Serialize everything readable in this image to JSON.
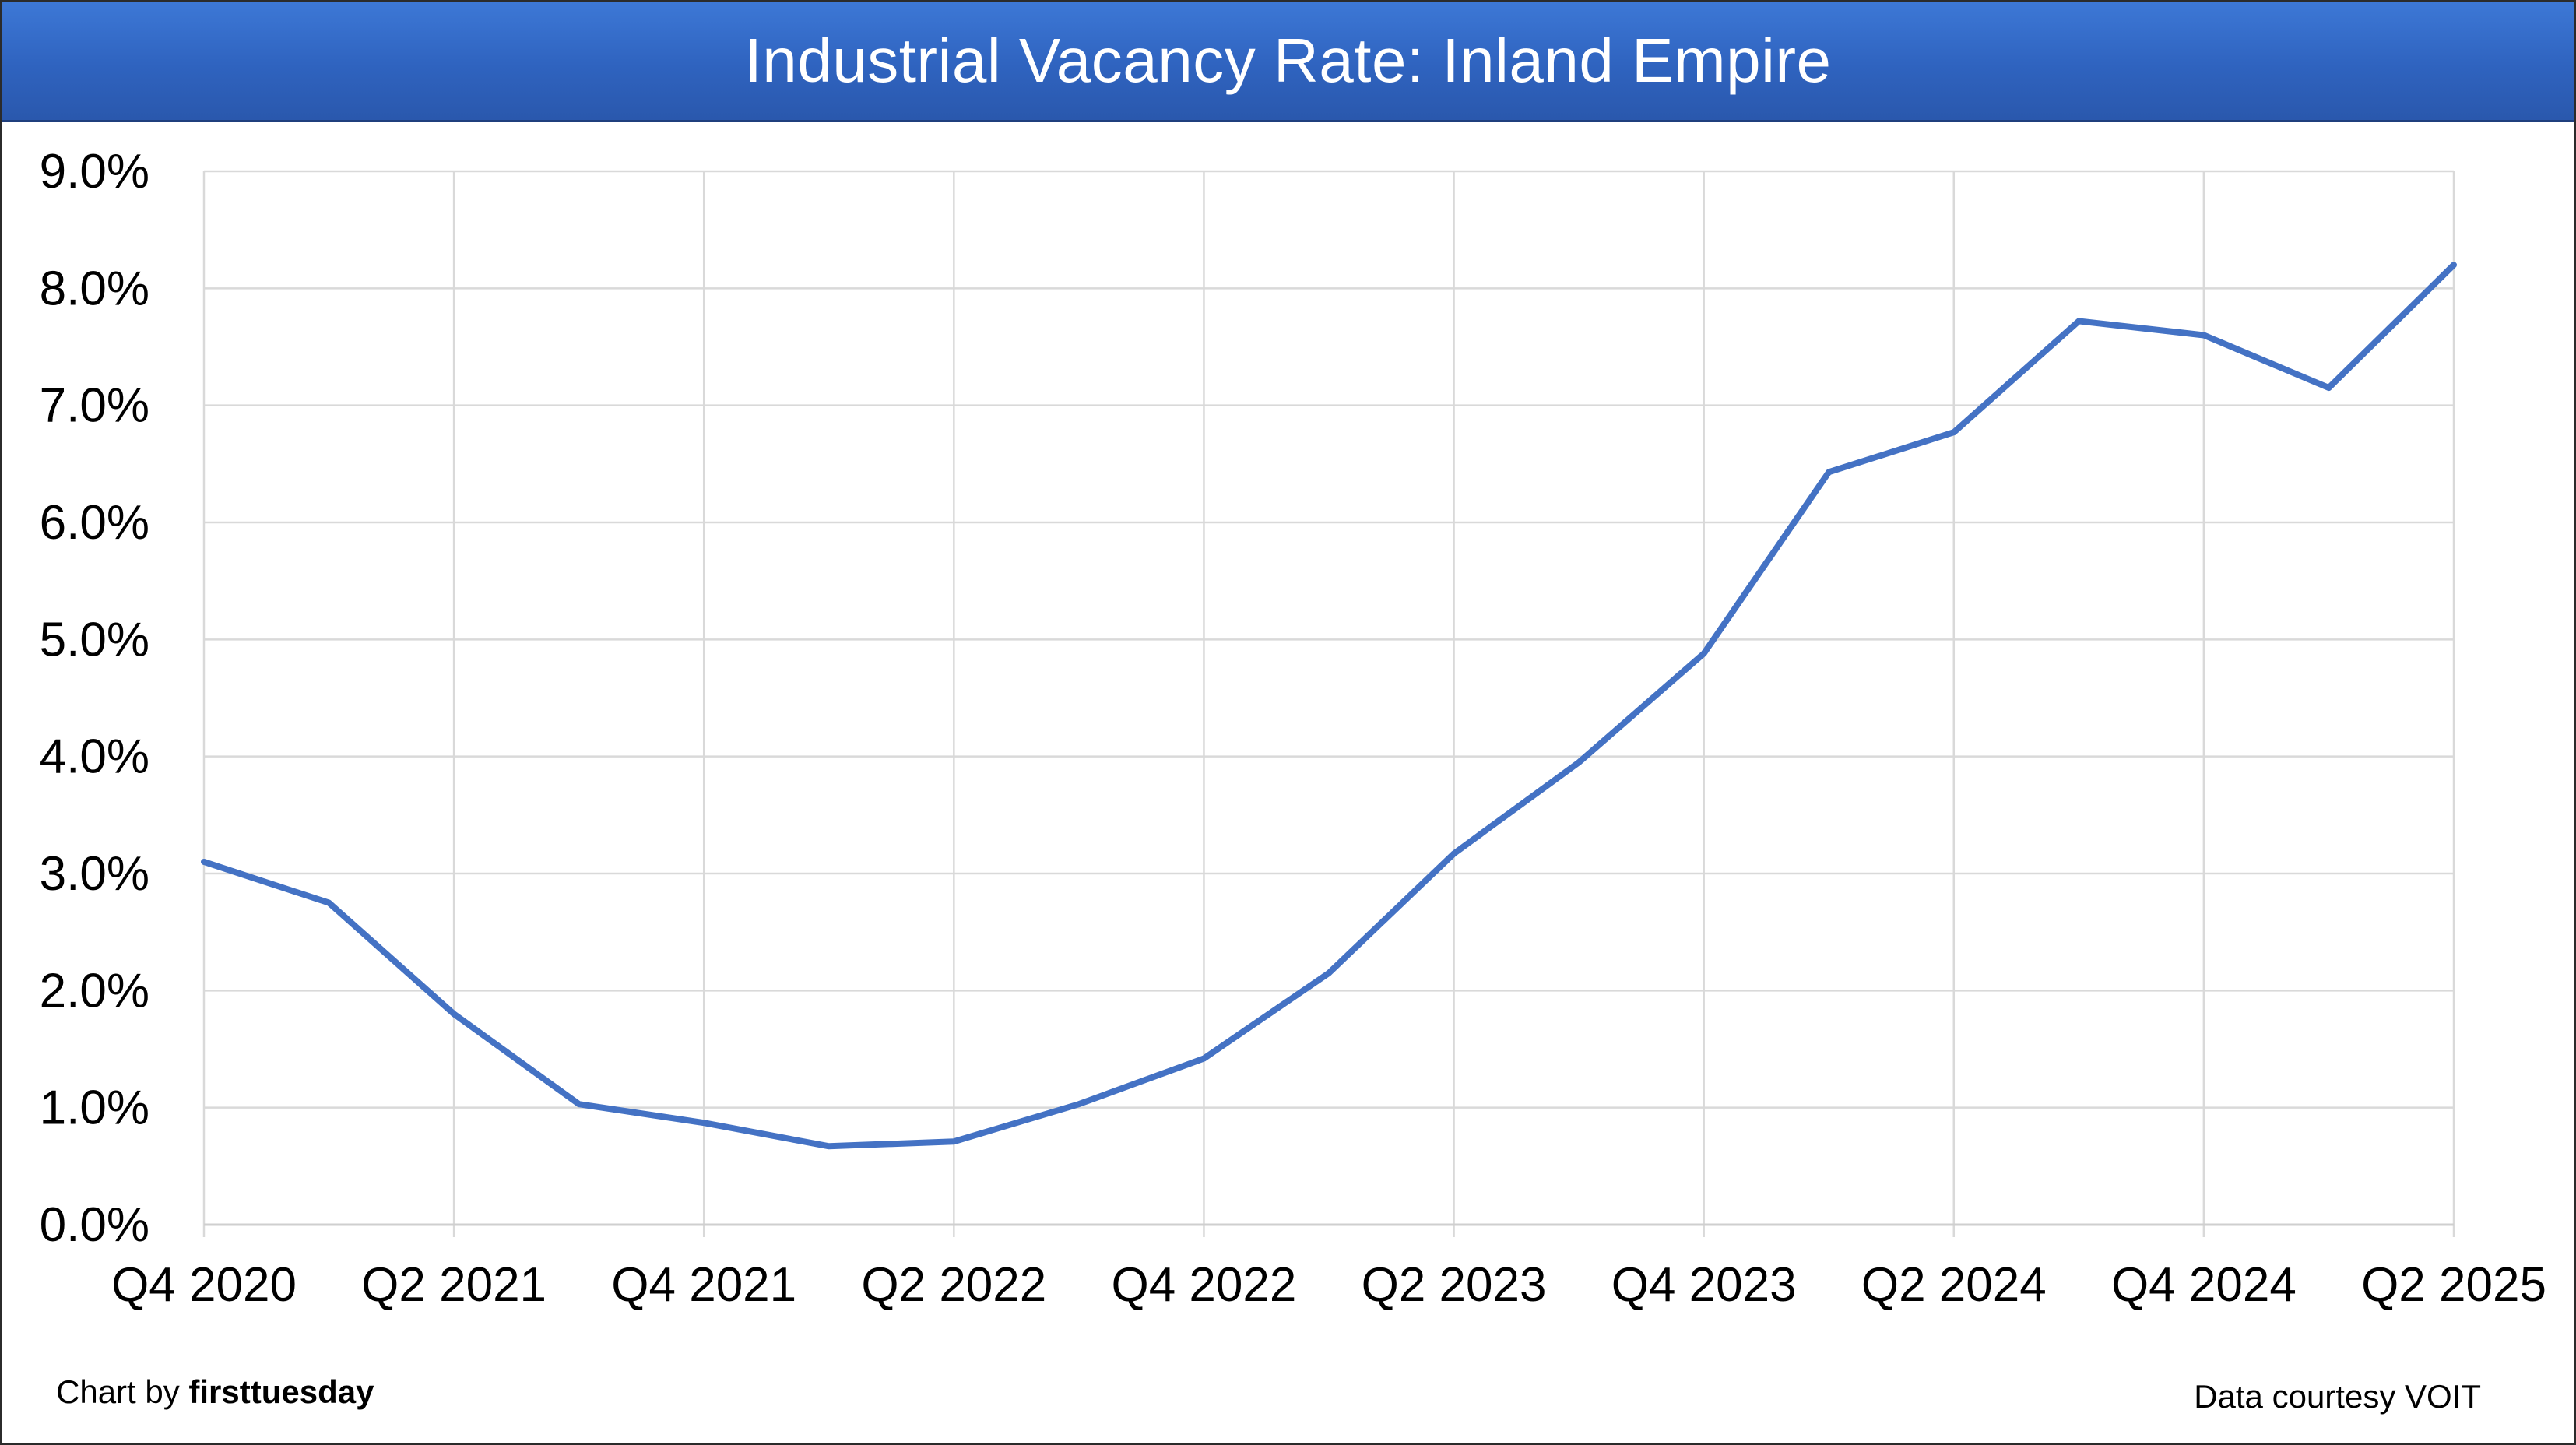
{
  "header": {
    "title": "Industrial Vacancy Rate: Inland Empire"
  },
  "footer": {
    "credit_prefix": "Chart by",
    "credit_brand": "firsttuesday",
    "source": "Data courtesy VOIT"
  },
  "colors": {
    "line": "#4472c4",
    "title_bar": "#2f63bf",
    "grid": "#d9d9d9"
  },
  "chart_data": {
    "type": "line",
    "title": "Industrial Vacancy Rate: Inland Empire",
    "xlabel": "",
    "ylabel": "",
    "grid": true,
    "categories": [
      "Q4 2020",
      "Q1 2021",
      "Q2 2021",
      "Q3 2021",
      "Q4 2021",
      "Q1 2022",
      "Q2 2022",
      "Q3 2022",
      "Q4 2022",
      "Q1 2023",
      "Q2 2023",
      "Q3 2023",
      "Q4 2023",
      "Q1 2024",
      "Q2 2024",
      "Q3 2024",
      "Q4 2024",
      "Q1 2025",
      "Q2 2025"
    ],
    "x_tick_labels": [
      "Q4 2020",
      "Q2 2021",
      "Q4 2021",
      "Q2 2022",
      "Q4 2022",
      "Q2 2023",
      "Q4 2023",
      "Q2 2024",
      "Q4 2024",
      "Q2 2025"
    ],
    "y_tick_labels": [
      "0.0%",
      "1.0%",
      "2.0%",
      "3.0%",
      "4.0%",
      "5.0%",
      "6.0%",
      "7.0%",
      "8.0%",
      "9.0%"
    ],
    "ylim": [
      0,
      9
    ],
    "series": [
      {
        "values": [
          3.1,
          2.75,
          1.8,
          1.03,
          0.87,
          0.67,
          0.71,
          1.03,
          1.42,
          2.15,
          3.17,
          3.95,
          4.88,
          6.43,
          6.77,
          7.72,
          7.6,
          7.15,
          8.2
        ]
      }
    ]
  }
}
